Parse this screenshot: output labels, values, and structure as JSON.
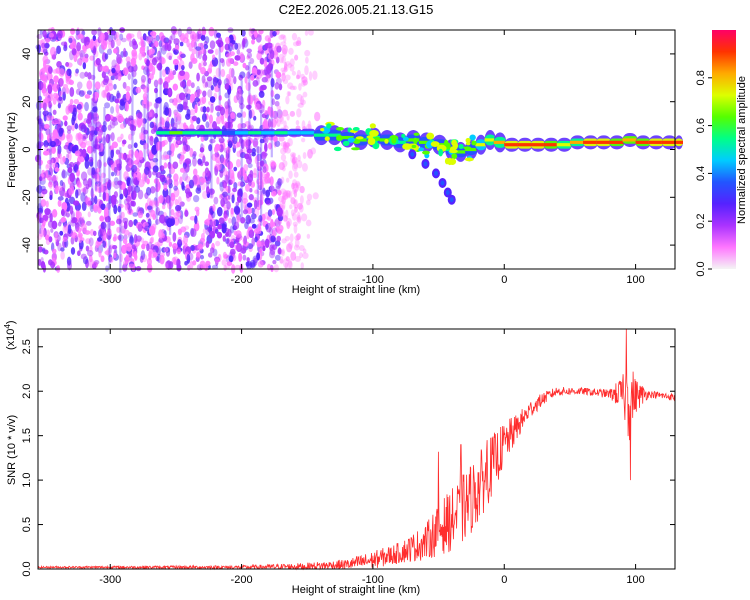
{
  "title": "C2E2.2026.005.21.13.G15",
  "colors": {
    "scale": [
      "#f4f4f4",
      "#ff77ff",
      "#aa33ff",
      "#5522ff",
      "#2255ff",
      "#00ccff",
      "#00ff88",
      "#55ff00",
      "#ddff00",
      "#ffaa00",
      "#ff3300",
      "#ff0066"
    ],
    "snr_line": "#ff2d2d",
    "axis": "#000000"
  },
  "chart_data": [
    {
      "type": "heatmap",
      "name": "spectrogram",
      "xlabel": "Height of straight line (km)",
      "ylabel": "Frequency (Hz)",
      "xlim": [
        -355,
        130
      ],
      "ylim": [
        -50,
        50
      ],
      "xticks": [
        -300,
        -200,
        -100,
        0,
        100
      ],
      "xtick_labels": [
        "-300",
        "-200",
        "-100",
        "0",
        "100"
      ],
      "yticks": [
        -40,
        -20,
        0,
        20,
        40
      ],
      "ytick_labels": [
        "-40",
        "-20",
        "0",
        "20",
        "40"
      ],
      "noise_region_x": [
        -355,
        -140
      ],
      "signal_track": [
        {
          "x": -265,
          "f": 7,
          "a": 0.55
        },
        {
          "x": -255,
          "f": 7,
          "a": 0.6
        },
        {
          "x": -245,
          "f": 7,
          "a": 0.55
        },
        {
          "x": -235,
          "f": 7,
          "a": 0.5
        },
        {
          "x": -215,
          "f": 7,
          "a": 0.4
        },
        {
          "x": -205,
          "f": 7,
          "a": 0.45
        },
        {
          "x": -195,
          "f": 7,
          "a": 0.5
        },
        {
          "x": -185,
          "f": 7,
          "a": 0.45
        },
        {
          "x": -175,
          "f": 7,
          "a": 0.5
        },
        {
          "x": -165,
          "f": 7,
          "a": 0.45
        },
        {
          "x": -155,
          "f": 7,
          "a": 0.45
        },
        {
          "x": -145,
          "f": 6,
          "a": 0.5
        },
        {
          "x": -135,
          "f": 6,
          "a": 0.55
        },
        {
          "x": -125,
          "f": 5,
          "a": 0.6
        },
        {
          "x": -115,
          "f": 4,
          "a": 0.6
        },
        {
          "x": -105,
          "f": 5,
          "a": 0.55
        },
        {
          "x": -95,
          "f": 4,
          "a": 0.6
        },
        {
          "x": -85,
          "f": 3,
          "a": 0.55
        },
        {
          "x": -75,
          "f": 4,
          "a": 0.6
        },
        {
          "x": -65,
          "f": 3,
          "a": 0.6
        },
        {
          "x": -55,
          "f": 2,
          "a": 0.6
        },
        {
          "x": -45,
          "f": 0,
          "a": 0.55
        },
        {
          "x": -38,
          "f": -1,
          "a": 0.6
        },
        {
          "x": -30,
          "f": 0,
          "a": 0.65
        },
        {
          "x": -22,
          "f": 2,
          "a": 0.7
        },
        {
          "x": -15,
          "f": 4,
          "a": 0.75
        },
        {
          "x": -8,
          "f": 3,
          "a": 0.8
        },
        {
          "x": 0,
          "f": 2,
          "a": 0.95
        },
        {
          "x": 10,
          "f": 2,
          "a": 0.95
        },
        {
          "x": 20,
          "f": 2,
          "a": 0.95
        },
        {
          "x": 30,
          "f": 2,
          "a": 0.9
        },
        {
          "x": 40,
          "f": 2,
          "a": 0.75
        },
        {
          "x": 50,
          "f": 3,
          "a": 0.8
        },
        {
          "x": 60,
          "f": 3,
          "a": 0.95
        },
        {
          "x": 70,
          "f": 3,
          "a": 0.95
        },
        {
          "x": 80,
          "f": 3,
          "a": 0.9
        },
        {
          "x": 90,
          "f": 4,
          "a": 0.85
        },
        {
          "x": 100,
          "f": 3,
          "a": 0.9
        },
        {
          "x": 110,
          "f": 3,
          "a": 0.95
        },
        {
          "x": 120,
          "f": 3,
          "a": 0.95
        },
        {
          "x": 130,
          "f": 3,
          "a": 0.95
        }
      ],
      "lower_branch": [
        {
          "x": -70,
          "f": -2
        },
        {
          "x": -60,
          "f": -6
        },
        {
          "x": -52,
          "f": -10
        },
        {
          "x": -47,
          "f": -14
        },
        {
          "x": -43,
          "f": -18
        },
        {
          "x": -40,
          "f": -21
        }
      ]
    },
    {
      "type": "colorbar",
      "label": "Normalized spectral amplitude",
      "range": [
        0,
        1
      ],
      "ticks": [
        0.0,
        0.2,
        0.4,
        0.6,
        0.8
      ],
      "tick_labels": [
        "0.0",
        "0.2",
        "0.4",
        "0.6",
        "0.8"
      ]
    },
    {
      "type": "line",
      "name": "snr",
      "xlabel": "Height of straight line (km)",
      "ylabel": "SNR (10 * v/v)",
      "y_multiplier": "(x10",
      "y_multiplier_exp": "4",
      "y_multiplier_close": ")",
      "xlim": [
        -355,
        130
      ],
      "ylim": [
        0,
        2.7
      ],
      "xticks": [
        -300,
        -200,
        -100,
        0,
        100
      ],
      "xtick_labels": [
        "-300",
        "-200",
        "-100",
        "0",
        "100"
      ],
      "yticks": [
        0.0,
        0.5,
        1.0,
        1.5,
        2.0,
        2.5
      ],
      "ytick_labels": [
        "0.0",
        "0.5",
        "1.0",
        "1.5",
        "2.0",
        "2.5"
      ],
      "envelope": {
        "x": [
          -355,
          -200,
          -150,
          -120,
          -100,
          -80,
          -60,
          -50,
          -40,
          -30,
          -20,
          -10,
          0,
          10,
          20,
          30,
          40,
          60,
          80,
          90,
          95,
          100,
          110,
          130
        ],
        "mean": [
          0.02,
          0.02,
          0.03,
          0.05,
          0.1,
          0.18,
          0.3,
          0.45,
          0.55,
          0.7,
          0.9,
          1.15,
          1.4,
          1.6,
          1.8,
          1.92,
          2.0,
          2.0,
          1.97,
          1.97,
          1.9,
          1.95,
          1.97,
          1.93
        ],
        "noise": [
          0.01,
          0.02,
          0.04,
          0.06,
          0.1,
          0.12,
          0.2,
          0.3,
          0.35,
          0.4,
          0.4,
          0.35,
          0.25,
          0.15,
          0.1,
          0.07,
          0.05,
          0.04,
          0.05,
          0.2,
          0.5,
          0.2,
          0.04,
          0.04
        ]
      },
      "peaks": [
        {
          "x": -50,
          "y": 1.32
        },
        {
          "x": -33,
          "y": 1.4
        },
        {
          "x": -13,
          "y": 1.45
        },
        {
          "x": 93,
          "y": 2.7
        },
        {
          "x": 96,
          "y": 1.0
        }
      ]
    }
  ]
}
